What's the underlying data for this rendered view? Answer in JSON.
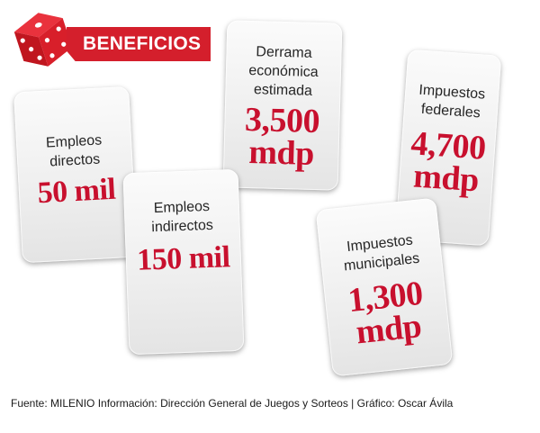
{
  "banner": {
    "title": "BENEFICIOS"
  },
  "colors": {
    "accent": "#d41f2c",
    "value_text": "#c8102e",
    "card": "#efefef"
  },
  "icons": {
    "dice": "dice-icon"
  },
  "cards": {
    "empleos_directos": {
      "label": "Empleos\ndirectos",
      "value": "50 mil"
    },
    "empleos_indirectos": {
      "label": "Empleos\nindirectos",
      "value": "150 mil"
    },
    "derrama": {
      "label": "Derrama\neconómica\nestimada",
      "value": "3,500\nmdp"
    },
    "impuestos_federales": {
      "label": "Impuestos\nfederales",
      "value": "4,700\nmdp"
    },
    "impuestos_municipales": {
      "label": "Impuestos\nmunicipales",
      "value": "1,300\nmdp"
    }
  },
  "footer": {
    "source": "Fuente: MILENIO Información: Dirección General de Juegos y Sorteos | Gráfico: Oscar Ávila"
  }
}
